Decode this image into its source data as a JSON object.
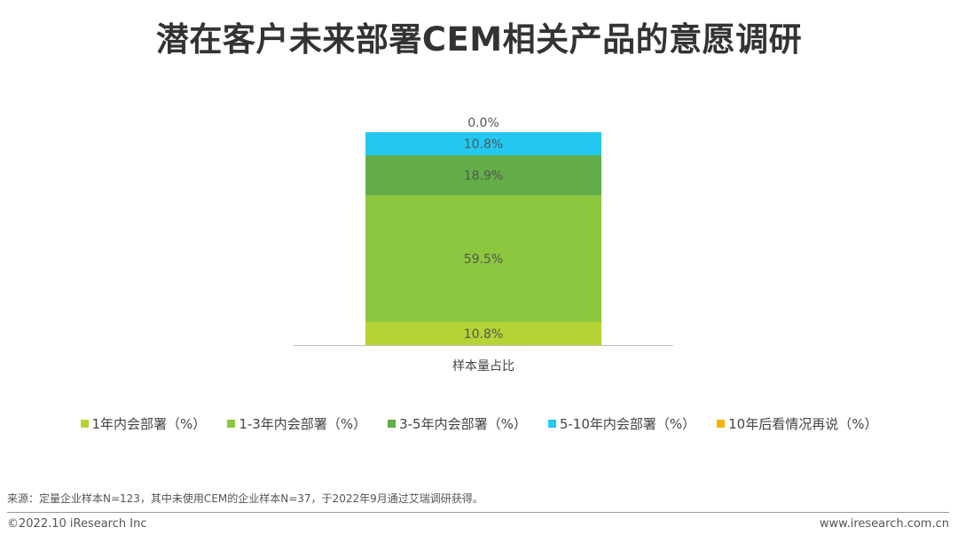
{
  "page": {
    "title": "潜在客户未来部署CEM相关产品的意愿调研",
    "source_note": "来源：定量企业样本N=123，其中未使用CEM的企业样本N=37，于2022年9月通过艾瑞调研获得。",
    "copyright": "©2022.10 iResearch Inc",
    "website": "www.iresearch.com.cn"
  },
  "chart_data": {
    "type": "bar",
    "stacked": true,
    "categories": [
      "样本量占比"
    ],
    "ylim": [
      0,
      100
    ],
    "grid": false,
    "legend_position": "bottom",
    "series": [
      {
        "name": "1年内会部署（%）",
        "values": [
          10.8
        ],
        "label": "10.8%",
        "color": "#B5D334"
      },
      {
        "name": "1-3年内会部署（%）",
        "values": [
          59.5
        ],
        "label": "59.5%",
        "color": "#8DC63F"
      },
      {
        "name": "3-5年内会部署（%）",
        "values": [
          18.9
        ],
        "label": "18.9%",
        "color": "#63AE48"
      },
      {
        "name": "5-10年内会部署（%）",
        "values": [
          10.8
        ],
        "label": "10.8%",
        "color": "#22C8F0"
      },
      {
        "name": "10年后看情况再说（%）",
        "values": [
          0.0
        ],
        "label": "0.0%",
        "color": "#F4B400"
      }
    ]
  }
}
